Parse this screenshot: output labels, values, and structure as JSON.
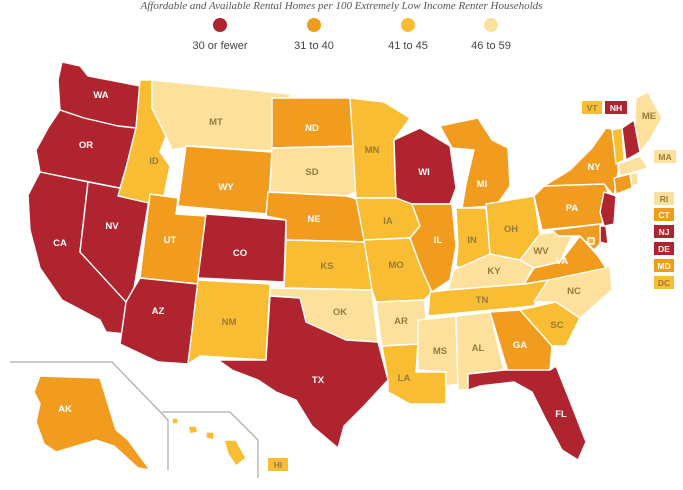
{
  "subtitle": "Affordable and Available Rental Homes per 100 Extremely Low Income Renter Households",
  "colors": {
    "c1": "#b0242f",
    "c2": "#f29c1f",
    "c3": "#f8bd32",
    "c4": "#fde09b",
    "text_dark": "#ffffff",
    "text_light": "#9a7a3a"
  },
  "legend": [
    {
      "label": "30 or fewer",
      "color": "#b0242f"
    },
    {
      "label": "31 to 40",
      "color": "#f29c1f"
    },
    {
      "label": "41 to 45",
      "color": "#f8bd32"
    },
    {
      "label": "46 to 59",
      "color": "#fde09b"
    }
  ],
  "states": {
    "WA": {
      "label": "WA",
      "cat": "c1"
    },
    "OR": {
      "label": "OR",
      "cat": "c1"
    },
    "CA": {
      "label": "CA",
      "cat": "c1"
    },
    "NV": {
      "label": "NV",
      "cat": "c1"
    },
    "AZ": {
      "label": "AZ",
      "cat": "c1"
    },
    "ID": {
      "label": "ID",
      "cat": "c3"
    },
    "MT": {
      "label": "MT",
      "cat": "c4"
    },
    "WY": {
      "label": "WY",
      "cat": "c2"
    },
    "UT": {
      "label": "UT",
      "cat": "c2"
    },
    "CO": {
      "label": "CO",
      "cat": "c1"
    },
    "NM": {
      "label": "NM",
      "cat": "c3"
    },
    "ND": {
      "label": "ND",
      "cat": "c2"
    },
    "SD": {
      "label": "SD",
      "cat": "c4"
    },
    "NE": {
      "label": "NE",
      "cat": "c2"
    },
    "KS": {
      "label": "KS",
      "cat": "c3"
    },
    "OK": {
      "label": "OK",
      "cat": "c4"
    },
    "TX": {
      "label": "TX",
      "cat": "c1"
    },
    "MN": {
      "label": "MN",
      "cat": "c3"
    },
    "IA": {
      "label": "IA",
      "cat": "c3"
    },
    "MO": {
      "label": "MO",
      "cat": "c3"
    },
    "AR": {
      "label": "AR",
      "cat": "c4"
    },
    "LA": {
      "label": "LA",
      "cat": "c3"
    },
    "WI": {
      "label": "WI",
      "cat": "c1"
    },
    "IL": {
      "label": "IL",
      "cat": "c2"
    },
    "MI": {
      "label": "MI",
      "cat": "c2"
    },
    "IN": {
      "label": "IN",
      "cat": "c3"
    },
    "OH": {
      "label": "OH",
      "cat": "c3"
    },
    "KY": {
      "label": "KY",
      "cat": "c4"
    },
    "TN": {
      "label": "TN",
      "cat": "c3"
    },
    "MS": {
      "label": "MS",
      "cat": "c4"
    },
    "AL": {
      "label": "AL",
      "cat": "c4"
    },
    "GA": {
      "label": "GA",
      "cat": "c2"
    },
    "FL": {
      "label": "FL",
      "cat": "c1"
    },
    "SC": {
      "label": "SC",
      "cat": "c3"
    },
    "NC": {
      "label": "NC",
      "cat": "c4"
    },
    "VA": {
      "label": "VA",
      "cat": "c2"
    },
    "WV": {
      "label": "WV",
      "cat": "c4"
    },
    "PA": {
      "label": "PA",
      "cat": "c2"
    },
    "NY": {
      "label": "NY",
      "cat": "c2"
    },
    "ME": {
      "label": "ME",
      "cat": "c4"
    },
    "AK": {
      "label": "AK",
      "cat": "c2"
    },
    "HI": {
      "label": "HI",
      "cat": "c3"
    },
    "VT": {
      "label": "VT",
      "cat": "c3"
    },
    "NH": {
      "label": "NH",
      "cat": "c1"
    },
    "MA": {
      "label": "MA",
      "cat": "c4"
    },
    "RI": {
      "label": "RI",
      "cat": "c4"
    },
    "CT": {
      "label": "CT",
      "cat": "c2"
    },
    "NJ": {
      "label": "NJ",
      "cat": "c1"
    },
    "DE": {
      "label": "DE",
      "cat": "c1"
    },
    "MD": {
      "label": "MD",
      "cat": "c2"
    },
    "DC": {
      "label": "DC",
      "cat": "c3"
    }
  }
}
